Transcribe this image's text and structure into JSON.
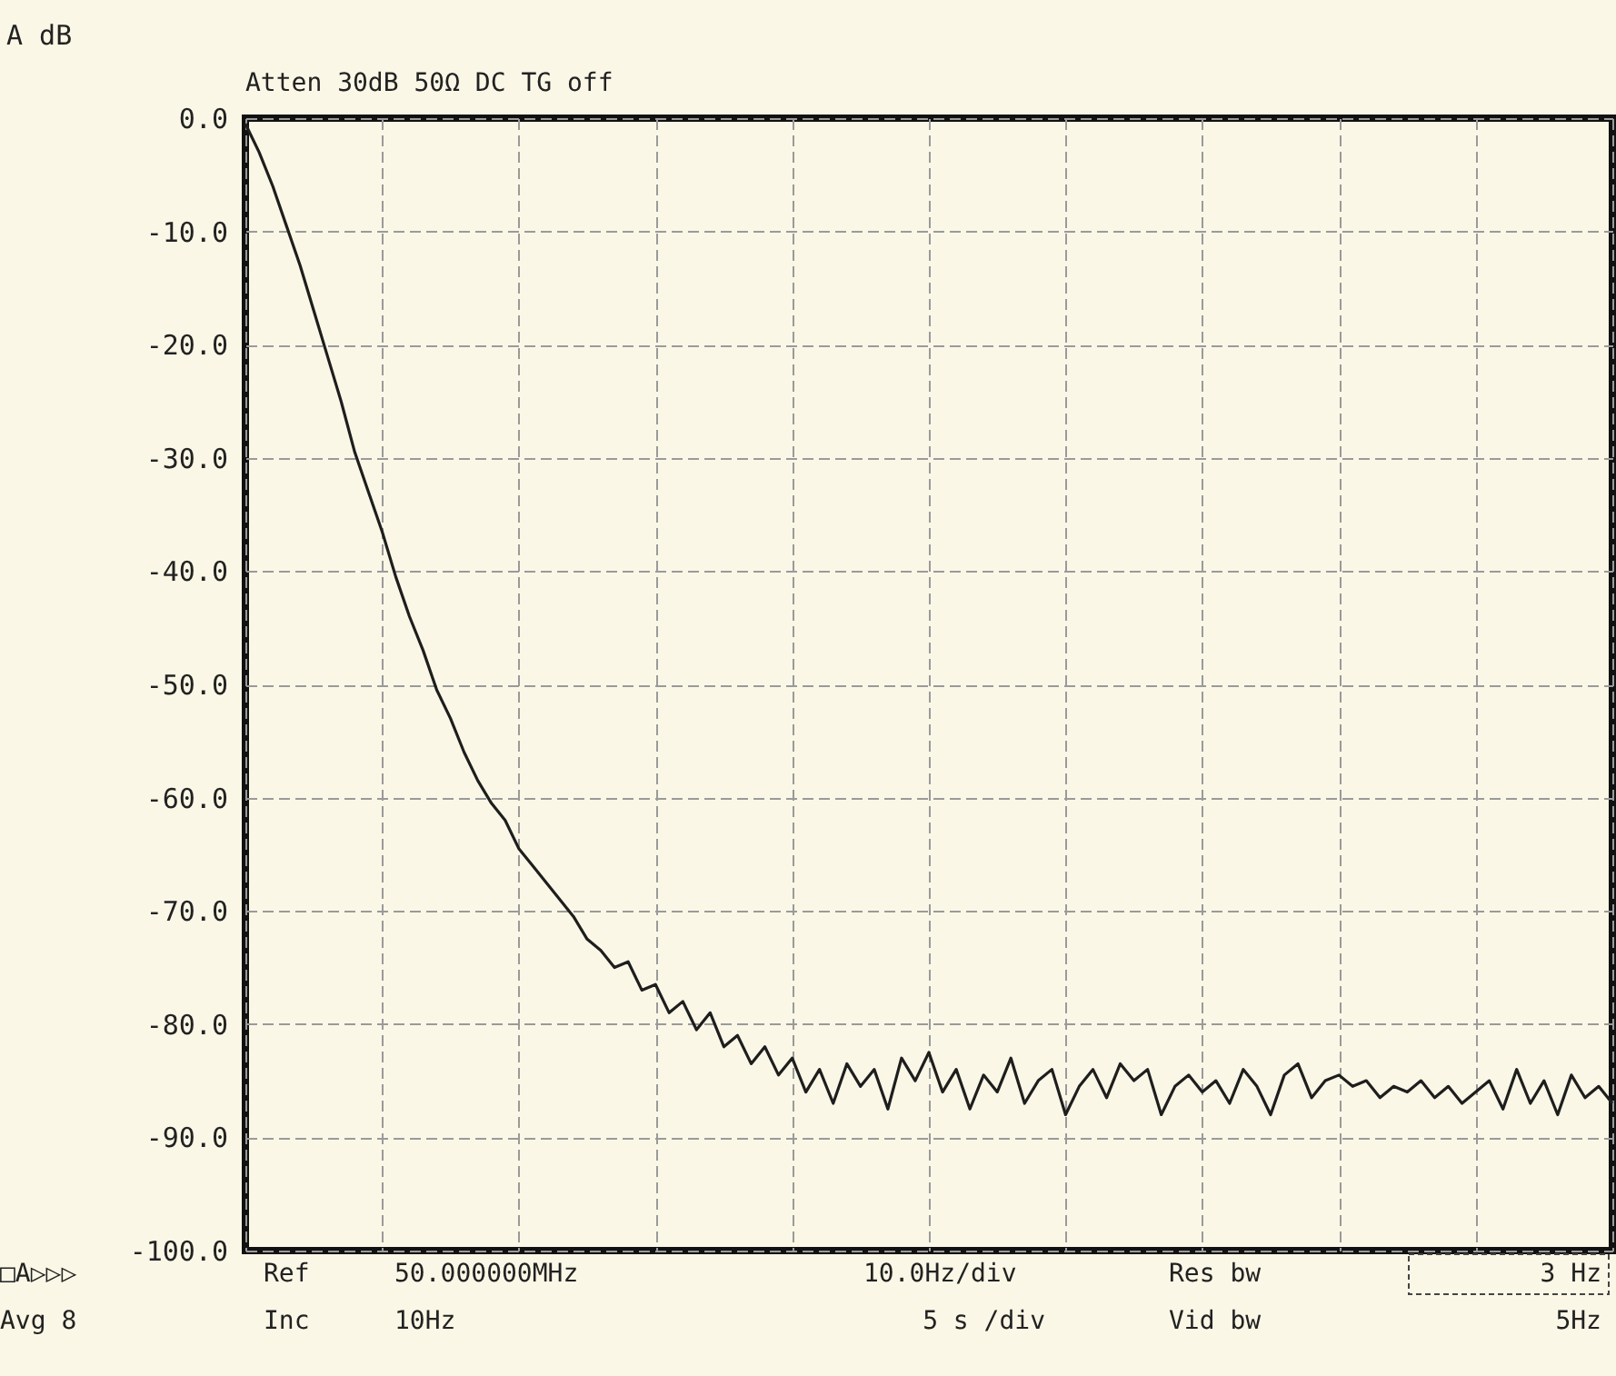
{
  "chart_data": {
    "type": "line",
    "ylabel": "A dB",
    "categories": [
      null,
      null,
      null,
      null,
      null,
      null,
      null,
      null,
      null,
      null,
      null,
      null,
      null,
      null,
      null,
      null,
      null,
      null,
      null,
      null,
      null,
      null,
      null,
      null,
      null,
      null,
      null,
      null,
      null,
      null,
      null,
      null,
      null,
      null,
      null,
      null,
      null,
      null,
      null,
      null,
      null,
      null,
      null,
      null,
      null,
      null,
      null,
      null,
      null,
      null,
      null,
      null,
      null,
      null,
      null,
      null,
      null,
      null,
      null,
      null,
      null,
      null,
      null,
      null,
      null,
      null,
      null,
      null,
      null,
      null,
      null,
      null,
      null,
      null,
      null,
      null,
      null,
      null,
      null,
      null,
      null,
      null,
      null,
      null,
      null,
      null,
      null,
      null,
      null,
      null,
      null,
      null,
      null,
      null,
      null,
      null,
      null,
      null,
      null,
      null,
      null
    ],
    "series": [
      {
        "color": "#1e1e1e",
        "values": [
          -0.5,
          -3,
          -6,
          -9.5,
          -13,
          -17,
          -21,
          -25,
          -29.5,
          -33,
          -36.5,
          -40.5,
          -44,
          -47,
          -50.5,
          -53,
          -56,
          -58.5,
          -60.5,
          -62,
          -64.5,
          -66,
          -67.5,
          -69,
          -70.5,
          -72.5,
          -73.5,
          -75,
          -74.5,
          -77,
          -76.5,
          -79,
          -78,
          -80.5,
          -79,
          -82,
          -81,
          -83.5,
          -82,
          -84.5,
          -83,
          -86,
          -84,
          -87,
          -83.5,
          -85.5,
          -84,
          -87.5,
          -83,
          -85,
          -82.5,
          -86,
          -84,
          -87.5,
          -84.5,
          -86,
          -83,
          -87,
          -85,
          -84,
          -88,
          -85.5,
          -84,
          -86.5,
          -83.5,
          -85,
          -84,
          -88,
          -85.5,
          -84.5,
          -86,
          -85,
          -87,
          -84,
          -85.5,
          -88,
          -84.5,
          -83.5,
          -86.5,
          -85,
          -84.5,
          -85.5,
          -85,
          -86.5,
          -85.5,
          -86,
          -85,
          -86.5,
          -85.5,
          -87,
          -86,
          -85,
          -87.5,
          -84,
          -87,
          -85,
          -88,
          -84.5,
          -86.5,
          -85.5,
          -87
        ]
      }
    ],
    "ylim": [
      -100,
      0
    ],
    "yticks": [
      {
        "value": 0,
        "label": "0.0"
      },
      {
        "value": -10,
        "label": "-10.0"
      },
      {
        "value": -20,
        "label": "-20.0"
      },
      {
        "value": -30,
        "label": "-30.0"
      },
      {
        "value": -40,
        "label": "-40.0"
      },
      {
        "value": -50,
        "label": "-50.0"
      },
      {
        "value": -60,
        "label": "-60.0"
      },
      {
        "value": -70,
        "label": "-70.0"
      },
      {
        "value": -80,
        "label": "-80.0"
      },
      {
        "value": -90,
        "label": "-90.0"
      },
      {
        "value": -100,
        "label": "-100.0"
      }
    ],
    "tick_labels": "y",
    "grid": true,
    "marker": "none",
    "line_style": "solid",
    "annotations": [
      "Atten 30dB   50Ω   DC TG off",
      "□A▷▷▷",
      "Ref",
      "50.000000MHz",
      "10.0Hz/div",
      "Res bw",
      "3 Hz",
      "Avg 8",
      "Inc",
      "10Hz",
      "5 s /div",
      "Vid bw",
      "5Hz"
    ]
  }
}
